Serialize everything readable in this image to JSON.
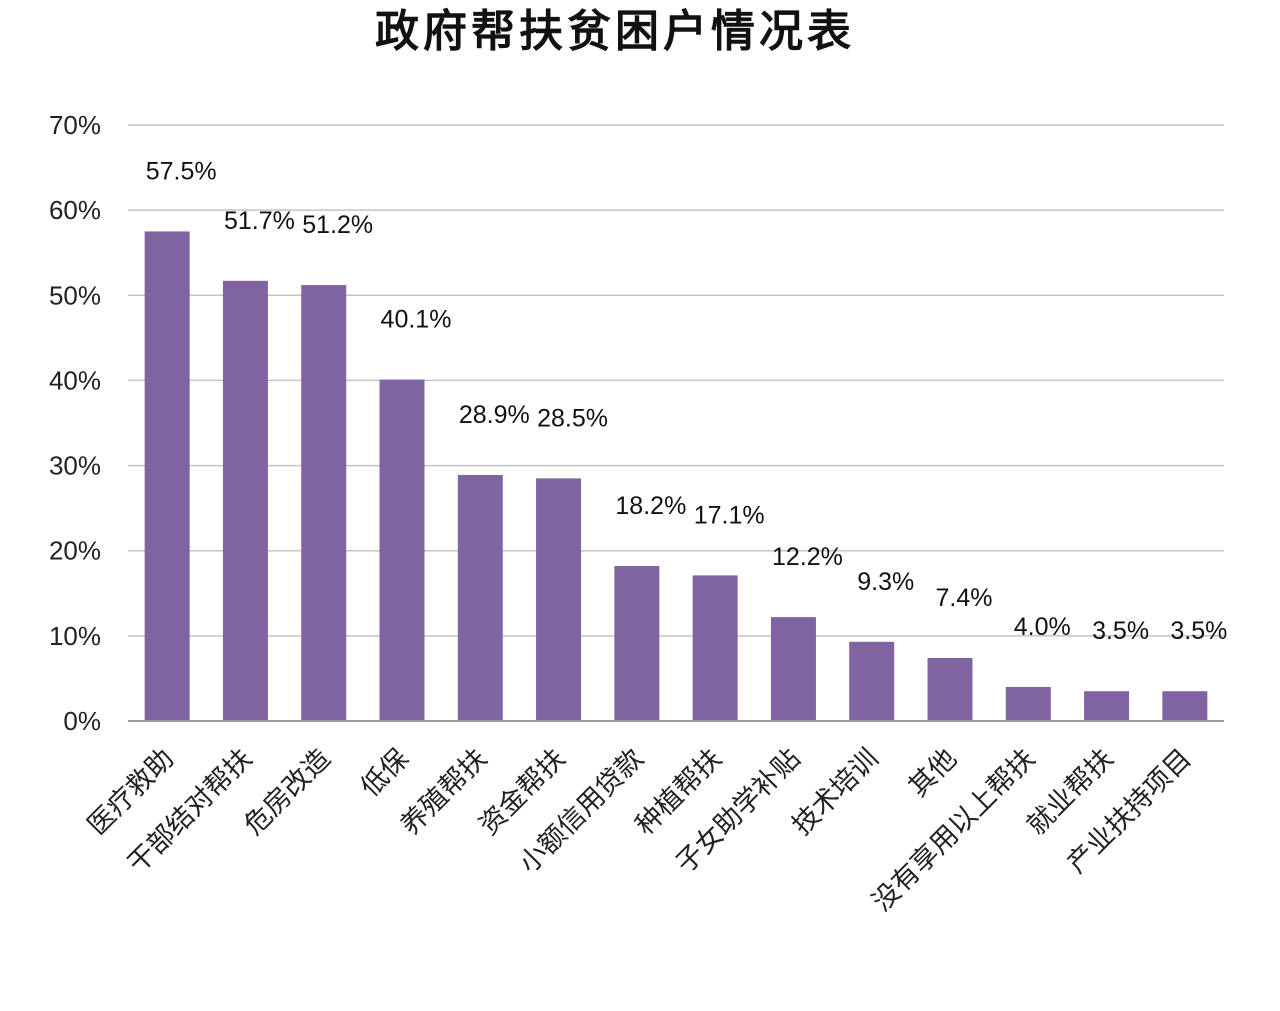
{
  "chart_data": {
    "type": "bar",
    "title": "政府帮扶贫困户情况表",
    "xlabel": "",
    "ylabel": "",
    "ylim": [
      0,
      70
    ],
    "y_ticks": [
      "0%",
      "10%",
      "20%",
      "30%",
      "40%",
      "50%",
      "60%",
      "70%"
    ],
    "grid": true,
    "legend": "none",
    "bar_color": "#8064a2",
    "categories": [
      "医疗救助",
      "干部结对帮扶",
      "危房改造",
      "低保",
      "养殖帮扶",
      "资金帮扶",
      "小额信用贷款",
      "种植帮扶",
      "子女助学补贴",
      "技术培训",
      "其他",
      "没有享用以上帮扶",
      "就业帮扶",
      "产业扶持项目"
    ],
    "values": [
      57.5,
      51.7,
      51.2,
      40.1,
      28.9,
      28.5,
      18.2,
      17.1,
      12.2,
      9.3,
      7.4,
      4.0,
      3.5,
      3.5
    ],
    "data_labels": [
      "57.5%",
      "51.7%",
      "51.2%",
      "40.1%",
      "28.9%",
      "28.5%",
      "18.2%",
      "17.1%",
      "12.2%",
      "9.3%",
      "7.4%",
      "4.0%",
      "3.5%",
      "3.5%"
    ]
  }
}
